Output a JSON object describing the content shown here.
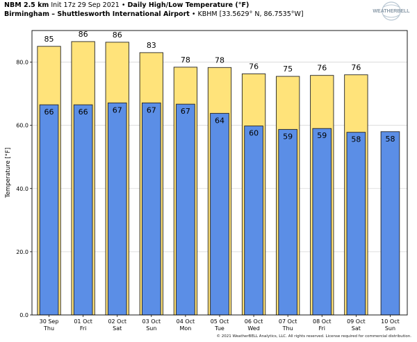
{
  "header": {
    "model": "NBM 2.5 km",
    "init": "Init 17z 29 Sep 2021",
    "sep": "•",
    "product": "Daily High/Low Temperature (°F)",
    "station": "Birmingham – Shuttlesworth International Airport",
    "location": "KBHM [33.5629° N, 86.7535°W]"
  },
  "logo": {
    "text": "WEATHERBELL",
    "accent": "#1e6fa8"
  },
  "copyright": "© 2021 WeatherBELL Analytics, LLC. All rights reserved. License required for commercial distribution.",
  "chart_data": {
    "type": "bar",
    "title": "Daily High/Low Temperature (°F)",
    "xlabel": "",
    "ylabel": "Temperature [°F]",
    "ylim": [
      0,
      90
    ],
    "yticks": [
      "0.0",
      "20.0",
      "40.0",
      "60.0",
      "80.0"
    ],
    "grid": "y",
    "categories": [
      [
        "30 Sep",
        "Thu"
      ],
      [
        "01 Oct",
        "Fri"
      ],
      [
        "02 Oct",
        "Sat"
      ],
      [
        "03 Oct",
        "Sun"
      ],
      [
        "04 Oct",
        "Mon"
      ],
      [
        "05 Oct",
        "Tue"
      ],
      [
        "06 Oct",
        "Wed"
      ],
      [
        "07 Oct",
        "Thu"
      ],
      [
        "08 Oct",
        "Fri"
      ],
      [
        "09 Oct",
        "Sat"
      ],
      [
        "10 Oct",
        "Sun"
      ]
    ],
    "series": [
      {
        "name": "High",
        "color": "#ffe37a",
        "values": [
          85.0,
          86.5,
          86.3,
          83.0,
          78.4,
          78.3,
          76.3,
          75.5,
          75.8,
          76.0,
          null
        ],
        "labels": [
          "85",
          "86",
          "86",
          "83",
          "78",
          "78",
          "76",
          "75",
          "76",
          "76",
          ""
        ]
      },
      {
        "name": "Low",
        "color": "#5b8ee6",
        "values": [
          66.5,
          66.5,
          67.1,
          67.1,
          66.7,
          63.8,
          59.8,
          58.7,
          59.0,
          57.8,
          58.0
        ],
        "labels": [
          "66",
          "66",
          "67",
          "67",
          "67",
          "64",
          "60",
          "59",
          "59",
          "58",
          "58"
        ]
      }
    ]
  }
}
